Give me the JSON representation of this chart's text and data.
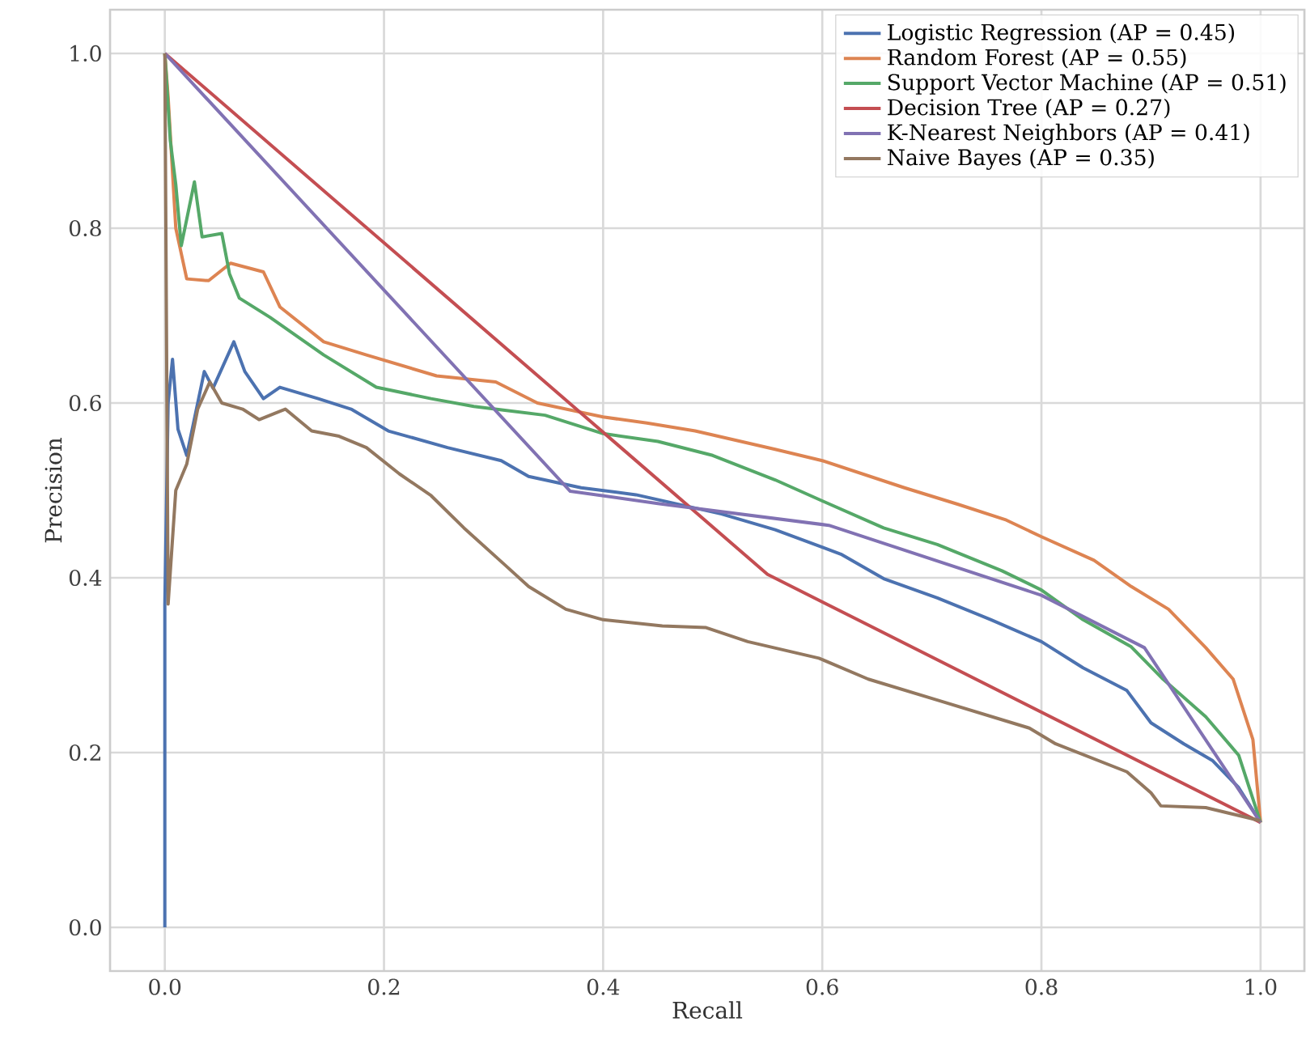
{
  "chart_data": {
    "type": "line",
    "xlabel": "Recall",
    "ylabel": "Precision",
    "xlim": [
      -0.05,
      1.04
    ],
    "ylim": [
      -0.05,
      1.05
    ],
    "xticks": [
      {
        "value": 0,
        "label": "0.0"
      },
      {
        "value": 0.2,
        "label": "0.2"
      },
      {
        "value": 0.4,
        "label": "0.4"
      },
      {
        "value": 0.6,
        "label": "0.6"
      },
      {
        "value": 0.8,
        "label": "0.8"
      },
      {
        "value": 1,
        "label": "1.0"
      }
    ],
    "yticks": [
      {
        "value": 0,
        "label": "0.0"
      },
      {
        "value": 0.2,
        "label": "0.2"
      },
      {
        "value": 0.4,
        "label": "0.4"
      },
      {
        "value": 0.6,
        "label": "0.6"
      },
      {
        "value": 0.8,
        "label": "0.8"
      },
      {
        "value": 1,
        "label": "1.0"
      }
    ],
    "grid": true,
    "legend": "top right",
    "marker": "none",
    "line_style": "solid",
    "series": [
      {
        "name": "Logistic Regression (AP = 0.45)",
        "color": "#4c72b0",
        "x": [
          0,
          0,
          0.003,
          0.007,
          0.012,
          0.02,
          0.036,
          0.044,
          0.063,
          0.073,
          0.09,
          0.105,
          0.14,
          0.17,
          0.204,
          0.258,
          0.307,
          0.332,
          0.38,
          0.43,
          0.508,
          0.557,
          0.617,
          0.656,
          0.705,
          0.754,
          0.8,
          0.838,
          0.878,
          0.9,
          0.93,
          0.956,
          0.98,
          1.0
        ],
        "values": [
          0,
          0.37,
          0.6,
          0.65,
          0.57,
          0.54,
          0.636,
          0.617,
          0.67,
          0.636,
          0.605,
          0.618,
          0.605,
          0.593,
          0.568,
          0.549,
          0.534,
          0.516,
          0.503,
          0.495,
          0.473,
          0.455,
          0.427,
          0.399,
          0.377,
          0.352,
          0.327,
          0.297,
          0.271,
          0.234,
          0.21,
          0.191,
          0.16,
          0.12
        ]
      },
      {
        "name": "Random Forest (AP = 0.55)",
        "color": "#dd8452",
        "x": [
          0,
          0.003,
          0.01,
          0.02,
          0.04,
          0.06,
          0.09,
          0.105,
          0.145,
          0.184,
          0.248,
          0.302,
          0.34,
          0.4,
          0.44,
          0.484,
          0.557,
          0.6,
          0.675,
          0.724,
          0.768,
          0.8,
          0.848,
          0.882,
          0.916,
          0.95,
          0.975,
          0.993,
          1.0
        ],
        "values": [
          1.0,
          0.95,
          0.8,
          0.742,
          0.74,
          0.76,
          0.75,
          0.71,
          0.67,
          0.655,
          0.631,
          0.624,
          0.6,
          0.584,
          0.577,
          0.568,
          0.547,
          0.534,
          0.503,
          0.484,
          0.466,
          0.447,
          0.42,
          0.39,
          0.364,
          0.32,
          0.284,
          0.215,
          0.12
        ]
      },
      {
        "name": "Support Vector Machine (AP = 0.51)",
        "color": "#55a868",
        "x": [
          0,
          0.005,
          0.01,
          0.015,
          0.027,
          0.034,
          0.052,
          0.059,
          0.068,
          0.096,
          0.145,
          0.193,
          0.243,
          0.282,
          0.347,
          0.4,
          0.45,
          0.5,
          0.557,
          0.6,
          0.656,
          0.705,
          0.764,
          0.8,
          0.838,
          0.882,
          0.911,
          0.95,
          0.98,
          1.0
        ],
        "values": [
          1.0,
          0.9,
          0.85,
          0.78,
          0.853,
          0.79,
          0.794,
          0.748,
          0.72,
          0.698,
          0.655,
          0.618,
          0.605,
          0.596,
          0.586,
          0.565,
          0.556,
          0.54,
          0.512,
          0.488,
          0.457,
          0.438,
          0.408,
          0.386,
          0.352,
          0.321,
          0.284,
          0.241,
          0.197,
          0.12
        ]
      },
      {
        "name": "Decision Tree (AP = 0.27)",
        "color": "#c44e52",
        "x": [
          0,
          0.55,
          1.0
        ],
        "values": [
          1.0,
          0.404,
          0.12
        ]
      },
      {
        "name": "K-Nearest Neighbors (AP = 0.41)",
        "color": "#8172b3",
        "x": [
          0,
          0.37,
          0.45,
          0.606,
          0.8,
          0.894,
          1.0
        ],
        "values": [
          1.0,
          0.499,
          0.485,
          0.46,
          0.38,
          0.32,
          0.12
        ]
      },
      {
        "name": "Naive Bayes (AP = 0.35)",
        "color": "#937860",
        "x": [
          0,
          0.003,
          0.01,
          0.02,
          0.03,
          0.041,
          0.052,
          0.071,
          0.086,
          0.11,
          0.134,
          0.159,
          0.184,
          0.214,
          0.243,
          0.273,
          0.311,
          0.332,
          0.366,
          0.4,
          0.454,
          0.494,
          0.532,
          0.597,
          0.642,
          0.705,
          0.789,
          0.813,
          0.878,
          0.9,
          0.909,
          0.95,
          1.0
        ],
        "values": [
          1.0,
          0.37,
          0.5,
          0.53,
          0.593,
          0.624,
          0.6,
          0.593,
          0.581,
          0.593,
          0.568,
          0.562,
          0.549,
          0.519,
          0.494,
          0.457,
          0.414,
          0.39,
          0.364,
          0.352,
          0.345,
          0.343,
          0.327,
          0.308,
          0.284,
          0.26,
          0.228,
          0.21,
          0.178,
          0.154,
          0.139,
          0.137,
          0.122
        ]
      }
    ]
  }
}
